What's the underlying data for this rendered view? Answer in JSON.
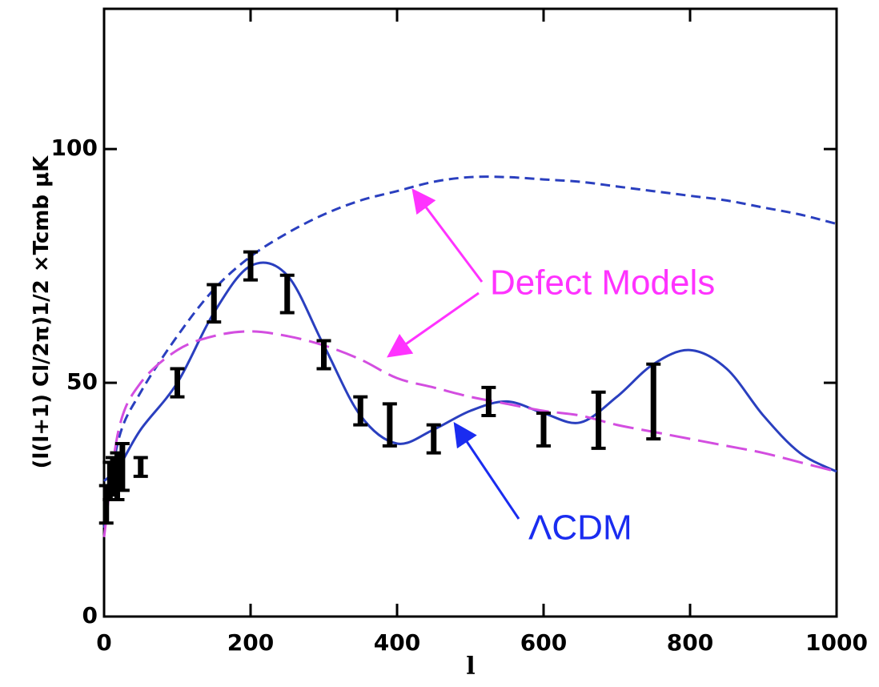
{
  "chart_data": {
    "type": "line",
    "ylabel": "(l(l+1) Cl/2π)1/2 ×Tcmb μK",
    "xlabel": "l",
    "xlim": [
      0,
      1000
    ],
    "ylim": [
      0,
      130
    ],
    "xticks": [
      0,
      200,
      400,
      600,
      800,
      1000
    ],
    "yticks": [
      0,
      50,
      100
    ],
    "x": [
      0,
      20,
      50,
      100,
      150,
      200,
      250,
      300,
      350,
      400,
      450,
      500,
      550,
      600,
      650,
      700,
      750,
      800,
      850,
      900,
      950,
      1000
    ],
    "series": [
      {
        "color": "#2a3fbf",
        "dash": "solid",
        "values": [
          29,
          32,
          40,
          50,
          65,
          75,
          73,
          58,
          43,
          37,
          40,
          44,
          46,
          43.5,
          41.5,
          47,
          54,
          57,
          53,
          43,
          35,
          31
        ]
      },
      {
        "color": "#2a3fbf",
        "dash": "short",
        "values": [
          19,
          38,
          48,
          60,
          70,
          77,
          82,
          86,
          89,
          91,
          93,
          94,
          94,
          93.5,
          93,
          92,
          91,
          90,
          89,
          87.5,
          86,
          84
        ]
      },
      {
        "color": "#d34ee0",
        "dash": "long",
        "values": [
          17,
          40,
          50,
          57,
          60,
          61,
          60,
          58,
          55,
          51,
          49,
          47,
          45.5,
          44,
          43,
          41,
          39.5,
          38,
          36.5,
          35,
          33,
          31
        ]
      }
    ],
    "points": {
      "color": "#000000",
      "x": [
        3,
        8,
        12,
        18,
        25,
        50,
        100,
        150,
        200,
        250,
        300,
        350,
        390,
        450,
        525,
        600,
        675,
        750
      ],
      "values": [
        24,
        29,
        30,
        30,
        32,
        32,
        50,
        67,
        75,
        69,
        56,
        44,
        41,
        38,
        46,
        40,
        42,
        46
      ],
      "errors": [
        4,
        4,
        4,
        5,
        5,
        2,
        3,
        4,
        3,
        4,
        3,
        3,
        4.5,
        3,
        3,
        3.5,
        6,
        8
      ]
    },
    "annotations": [
      {
        "text": "Defect Models",
        "color": "#ff33ff"
      },
      {
        "text": "ΛCDM",
        "color": "#1a2cf0"
      }
    ]
  }
}
